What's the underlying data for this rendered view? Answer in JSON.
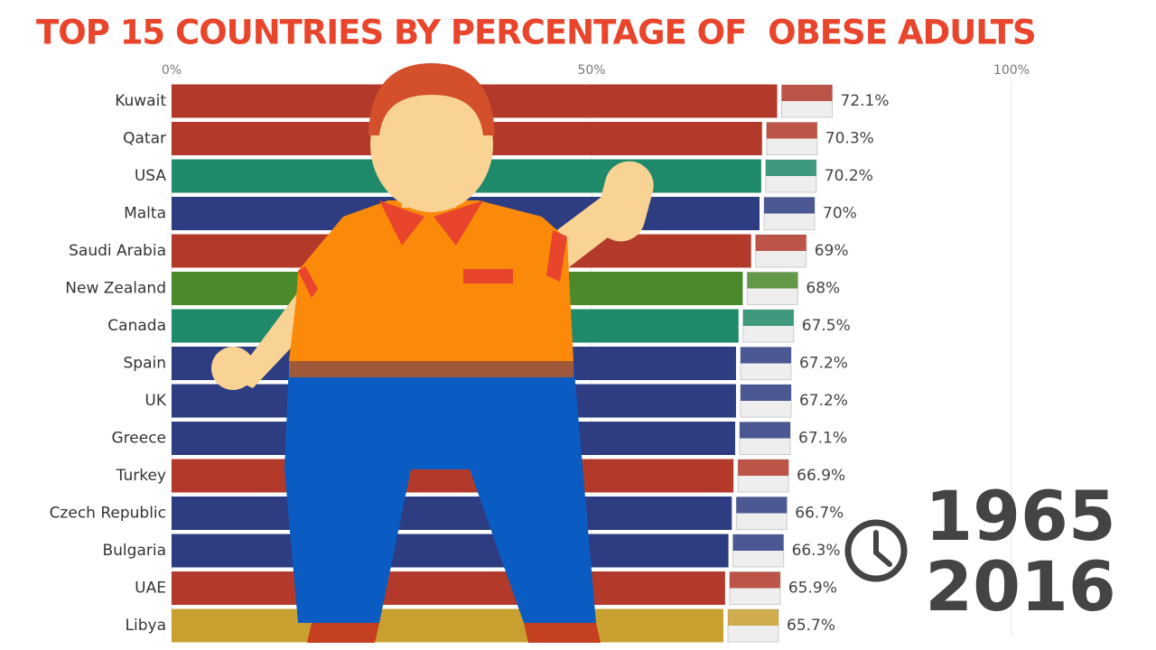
{
  "chart_data": {
    "type": "bar",
    "orientation": "horizontal",
    "title": "TOP 15 COUNTRIES BY PERCENTAGE OF  OBESE ADULTS",
    "categories": [
      "Kuwait",
      "Qatar",
      "USA",
      "Malta",
      "Saudi Arabia",
      "New Zealand",
      "Canada",
      "Spain",
      "UK",
      "Greece",
      "Turkey",
      "Czech Republic",
      "Bulgaria",
      "UAE",
      "Libya"
    ],
    "values": [
      72.1,
      70.3,
      70.2,
      70,
      69,
      68,
      67.5,
      67.2,
      67.2,
      67.1,
      66.9,
      66.7,
      66.3,
      65.9,
      65.7
    ],
    "value_labels": [
      "72.1%",
      "70.3%",
      "70.2%",
      "70%",
      "69%",
      "68%",
      "67.5%",
      "67.2%",
      "67.2%",
      "67.1%",
      "66.9%",
      "66.7%",
      "66.3%",
      "65.9%",
      "65.7%"
    ],
    "colors": [
      "#b33a2a",
      "#b33a2a",
      "#1f8a6a",
      "#2e3d82",
      "#b33a2a",
      "#4a8a2a",
      "#1f8a6a",
      "#2e3d82",
      "#2e3d82",
      "#2e3d82",
      "#b33a2a",
      "#2e3d82",
      "#2e3d82",
      "#b33a2a",
      "#c9a030"
    ],
    "xlim": [
      0,
      100
    ],
    "xticks": [
      {
        "value": 0,
        "label": "0%"
      },
      {
        "value": 50,
        "label": "50%"
      },
      {
        "value": 100,
        "label": "100%"
      }
    ],
    "grid": true,
    "annotations": [
      "1965",
      "2016"
    ]
  }
}
